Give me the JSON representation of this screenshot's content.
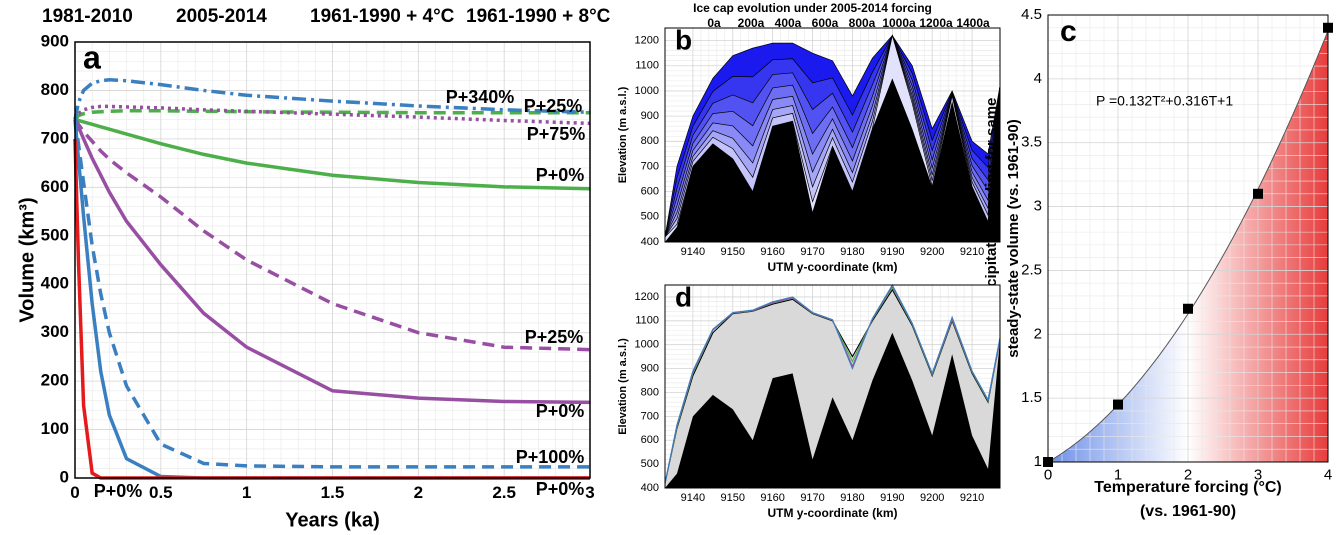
{
  "chart_data": [
    {
      "type": "line",
      "panel_label": "a",
      "legend": [
        {
          "name": "1981-2010",
          "color": "#4daf4a"
        },
        {
          "name": "2005-2014",
          "color": "#984ea3"
        },
        {
          "name": "1961-1990 + 4°C",
          "color": "#3a7fc0"
        },
        {
          "name": "1961-1990 + 8°C",
          "color": "#e41a1c"
        }
      ],
      "x": [
        0,
        0.02,
        0.05,
        0.1,
        0.15,
        0.2,
        0.3,
        0.5,
        0.75,
        1,
        1.5,
        2,
        2.5,
        3
      ],
      "series": [
        {
          "name": "P+0%",
          "group": 0,
          "color": "#4daf4a",
          "dash": "solid",
          "values": [
            740,
            738,
            735,
            730,
            725,
            720,
            710,
            690,
            668,
            650,
            625,
            610,
            601,
            597
          ]
        },
        {
          "name": "P+25%",
          "group": 0,
          "color": "#4daf4a",
          "dash": "dashed",
          "values": [
            740,
            748,
            752,
            755,
            756,
            757,
            758,
            758,
            757,
            756,
            755,
            754,
            754,
            754
          ]
        },
        {
          "name": "P+75%",
          "group": 1,
          "color": "#984ea3",
          "dash": "dotted",
          "values": [
            740,
            752,
            760,
            765,
            767,
            767,
            766,
            764,
            760,
            757,
            751,
            745,
            738,
            732
          ]
        },
        {
          "name": "P+25%",
          "group": 1,
          "color": "#984ea3",
          "dash": "dashed",
          "values": [
            740,
            730,
            715,
            695,
            675,
            658,
            630,
            580,
            510,
            450,
            360,
            300,
            270,
            265
          ]
        },
        {
          "name": "P+0%",
          "group": 1,
          "color": "#984ea3",
          "dash": "solid",
          "values": [
            740,
            725,
            700,
            660,
            625,
            590,
            530,
            440,
            340,
            270,
            180,
            165,
            158,
            156
          ]
        },
        {
          "name": "P+340%",
          "group": 2,
          "color": "#3a7fc0",
          "dash": "dashdot",
          "values": [
            740,
            775,
            800,
            815,
            820,
            822,
            820,
            812,
            800,
            790,
            778,
            768,
            760,
            755
          ]
        },
        {
          "name": "P+100%",
          "group": 2,
          "color": "#3a7fc0",
          "dash": "dashed",
          "values": [
            740,
            690,
            610,
            480,
            380,
            300,
            190,
            70,
            30,
            25,
            23,
            23,
            23,
            23
          ]
        },
        {
          "name": "P+0%",
          "group": 2,
          "color": "#3a7fc0",
          "dash": "solid",
          "values": [
            740,
            660,
            540,
            360,
            220,
            130,
            40,
            3,
            0,
            0,
            0,
            0,
            0,
            0
          ]
        },
        {
          "name": "P+0%",
          "group": 3,
          "color": "#e41a1c",
          "dash": "solid",
          "values": [
            700,
            450,
            150,
            10,
            0,
            0,
            0,
            0,
            0,
            0,
            0,
            0,
            0,
            0
          ]
        }
      ],
      "xlabel": "Years (ka)",
      "ylabel": "Volume (km³)",
      "xlim": [
        0,
        3
      ],
      "ylim": [
        0,
        900
      ],
      "xticks": [
        0,
        0.5,
        1,
        1.5,
        2,
        2.5,
        3
      ],
      "yticks": [
        0,
        100,
        200,
        300,
        400,
        500,
        600,
        700,
        800,
        900
      ],
      "grid": true
    },
    {
      "type": "area",
      "panel_label": "b",
      "title": "Ice cap evolution under 2005-2014 forcing",
      "x": [
        9133,
        9136,
        9140,
        9145,
        9150,
        9155,
        9160,
        9165,
        9170,
        9175,
        9180,
        9185,
        9190,
        9195,
        9200,
        9205,
        9210,
        9214,
        9217
      ],
      "series": [
        {
          "name": "0a",
          "color": "#1a1aee",
          "values": [
            420,
            700,
            900,
            1050,
            1140,
            1170,
            1190,
            1190,
            1150,
            1120,
            980,
            1130,
            1220,
            1100,
            850,
            1000,
            800,
            750,
            1020
          ]
        },
        {
          "name": "200a",
          "color": "#3636f0",
          "values": [
            420,
            654,
            860,
            998,
            1058,
            1056,
            1124,
            1128,
            1032,
            1052,
            904,
            1074,
            1220,
            1070,
            804,
            996,
            764,
            696,
            1020
          ]
        },
        {
          "name": "400a",
          "color": "#5252f2",
          "values": [
            420,
            613,
            824,
            951,
            984,
            953,
            1065,
            1072,
            926,
            991,
            836,
            1024,
            1220,
            1043,
            763,
            992,
            732,
            647,
            1020
          ]
        },
        {
          "name": "600a",
          "color": "#6e6ef4",
          "values": [
            420,
            576,
            792,
            910,
            919,
            862,
            1012,
            1023,
            831,
            936,
            775,
            979,
            1220,
            1019,
            726,
            989,
            703,
            604,
            1020
          ]
        },
        {
          "name": "800a",
          "color": "#8a8af6",
          "values": [
            420,
            544,
            764,
            873,
            861,
            782,
            966,
            979,
            749,
            889,
            722,
            940,
            1220,
            998,
            694,
            986,
            678,
            566,
            1020
          ]
        },
        {
          "name": "1000a",
          "color": "#a6a6f8",
          "values": [
            420,
            516,
            740,
            842,
            812,
            714,
            926,
            942,
            678,
            848,
            676,
            906,
            1220,
            980,
            666,
            984,
            656,
            534,
            1020
          ]
        },
        {
          "name": "1200a",
          "color": "#c4c4fa",
          "values": [
            420,
            493,
            720,
            816,
            771,
            657,
            893,
            911,
            619,
            814,
            638,
            878,
            1220,
            965,
            643,
            982,
            638,
            507,
            1020
          ]
        },
        {
          "name": "1400a",
          "color": "#e2e2fd",
          "values": [
            420,
            470,
            700,
            790,
            730,
            600,
            860,
            880,
            560,
            780,
            600,
            850,
            1220,
            950,
            620,
            980,
            620,
            480,
            1020
          ]
        }
      ],
      "bedrock": {
        "color": "#000000",
        "values": [
          400,
          460,
          700,
          790,
          730,
          600,
          860,
          880,
          520,
          780,
          600,
          850,
          1050,
          850,
          620,
          960,
          620,
          480,
          1020
        ]
      },
      "xlabel": "UTM y-coordinate (km)",
      "ylabel": "Elevation (m a.s.l.)",
      "xlim": [
        9133,
        9217
      ],
      "ylim": [
        400,
        1250
      ],
      "xticks": [
        9140,
        9150,
        9160,
        9170,
        9180,
        9190,
        9200,
        9210
      ],
      "yticks": [
        400,
        500,
        600,
        700,
        800,
        900,
        1000,
        1100,
        1200
      ],
      "grid": true
    },
    {
      "type": "scatter",
      "panel_label": "c",
      "equation": "P =0.132T²+0.316T+1",
      "fit_coefficients": [
        0.132,
        0.316,
        1
      ],
      "x": [
        0,
        1,
        2,
        3,
        4
      ],
      "values": [
        1,
        1.45,
        2.2,
        3.1,
        4.4
      ],
      "color": "#000000",
      "gradient": [
        "#6d8fe8",
        "#ffffff",
        "#e83c3c"
      ],
      "xlabel": [
        "Temperature forcing (°C)",
        "(vs. 1961-90)"
      ],
      "ylabel": [
        "Required precipitation scaling for same",
        "steady-state volume (vs. 1961-90)"
      ],
      "xlim": [
        0,
        4
      ],
      "ylim": [
        1,
        4.5
      ],
      "xticks": [
        0,
        1,
        2,
        3,
        4
      ],
      "yticks": [
        1,
        1.5,
        2,
        2.5,
        3,
        3.5,
        4,
        4.5
      ],
      "grid": true
    },
    {
      "type": "area",
      "panel_label": "d",
      "x": [
        9133,
        9136,
        9140,
        9145,
        9150,
        9155,
        9160,
        9165,
        9170,
        9175,
        9180,
        9185,
        9190,
        9195,
        9200,
        9205,
        9210,
        9214,
        9217
      ],
      "series": [
        {
          "color": "#000000",
          "fill": "#d9d9d9",
          "values": [
            420,
            650,
            870,
            1050,
            1130,
            1140,
            1170,
            1190,
            1130,
            1100,
            950,
            1100,
            1230,
            1080,
            870,
            1100,
            880,
            760,
            1020
          ]
        },
        {
          "color": "#4daf4a",
          "values": [
            420,
            655,
            880,
            1060,
            1132,
            1142,
            1175,
            1195,
            1132,
            1102,
            930,
            1105,
            1240,
            1085,
            875,
            1105,
            885,
            765,
            1020
          ]
        },
        {
          "color": "#984ea3",
          "values": [
            420,
            660,
            885,
            1062,
            1133,
            1143,
            1176,
            1196,
            1133,
            1103,
            910,
            1108,
            1245,
            1088,
            878,
            1108,
            888,
            768,
            1020
          ]
        },
        {
          "color": "#3a7fc0",
          "values": [
            420,
            665,
            890,
            1065,
            1135,
            1145,
            1180,
            1200,
            1135,
            1105,
            900,
            1110,
            1250,
            1090,
            880,
            1115,
            890,
            770,
            1030
          ]
        }
      ],
      "bedrock": {
        "color": "#000000",
        "values": [
          400,
          460,
          700,
          790,
          730,
          600,
          860,
          880,
          520,
          780,
          600,
          850,
          1050,
          850,
          620,
          960,
          620,
          480,
          1020
        ]
      },
      "xlabel": "UTM y-coordinate (km)",
      "ylabel": "Elevation (m a.s.l.)",
      "xlim": [
        9133,
        9217
      ],
      "ylim": [
        400,
        1250
      ],
      "xticks": [
        9140,
        9150,
        9160,
        9170,
        9180,
        9190,
        9200,
        9210
      ],
      "yticks": [
        400,
        500,
        600,
        700,
        800,
        900,
        1000,
        1100,
        1200
      ],
      "grid": true
    }
  ]
}
